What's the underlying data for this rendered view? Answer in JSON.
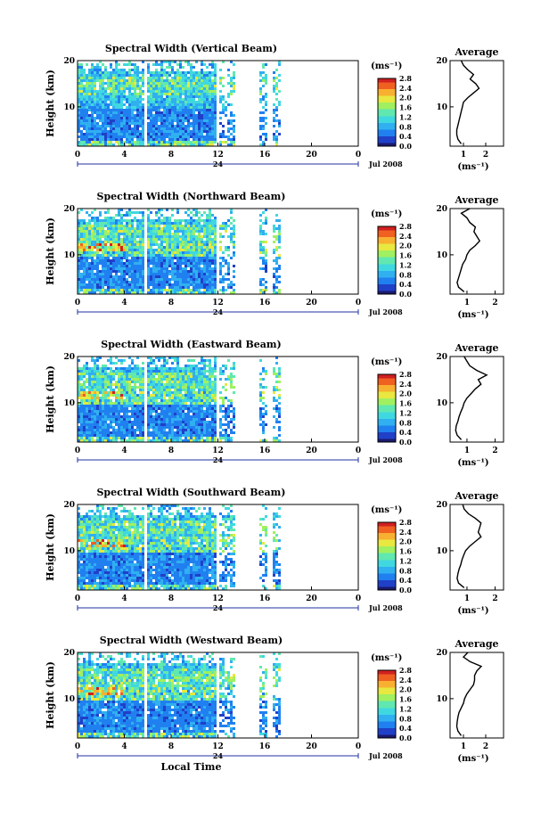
{
  "time_axis_label": "Local Time",
  "date_label": "Jul 2008",
  "day_label": "24",
  "average_title": "Average",
  "unit_label": "(ms⁻¹)",
  "height_axis_label": "Height (km)",
  "colors": {
    "colormap": [
      "#1a1a6e",
      "#2040c8",
      "#2080f0",
      "#30b0f0",
      "#40d8e0",
      "#60e8b0",
      "#a0f060",
      "#e8e840",
      "#f8b030",
      "#f06020",
      "#d02020"
    ]
  },
  "chart_data": [
    {
      "type": "heatmap",
      "title": "Spectral Width (Vertical Beam)",
      "xlabel": "",
      "ylabel": "Height (km)",
      "xlim": [
        0,
        24
      ],
      "ylim": [
        1.5,
        20
      ],
      "x_ticks": [
        "0",
        "4",
        "8",
        "12",
        "16",
        "20",
        "0"
      ],
      "y_ticks": [
        "10",
        "20"
      ],
      "colorbar": {
        "label": "(ms⁻¹)",
        "range": [
          0,
          2.8
        ],
        "ticks": [
          "0.0",
          "0.4",
          "0.8",
          "1.2",
          "1.6",
          "2.0",
          "2.4",
          "2.8"
        ]
      },
      "data_gaps_hours": [
        [
          5.5,
          5.8
        ],
        [
          11.8,
          12.1
        ],
        [
          13.3,
          15.5
        ],
        [
          16.1,
          16.5
        ],
        [
          17.3,
          24
        ]
      ],
      "average_profile": {
        "xlim": [
          0.4,
          2.8
        ],
        "x_ticks": [
          "1",
          "2"
        ],
        "xlabel": "(ms⁻¹)",
        "height_km": [
          2,
          3,
          4,
          5,
          6,
          7,
          8,
          9,
          10,
          11,
          12,
          13,
          14,
          15,
          16,
          17,
          18,
          19,
          20
        ],
        "width_ms": [
          0.9,
          0.75,
          0.7,
          0.7,
          0.75,
          0.8,
          0.85,
          0.9,
          0.95,
          1.0,
          1.2,
          1.45,
          1.7,
          1.55,
          1.3,
          1.45,
          1.2,
          1.0,
          0.9
        ]
      }
    },
    {
      "type": "heatmap",
      "title": "Spectral Width (Northward Beam)",
      "xlabel": "",
      "ylabel": "Height (km)",
      "xlim": [
        0,
        24
      ],
      "ylim": [
        1.5,
        20
      ],
      "x_ticks": [
        "0",
        "4",
        "8",
        "12",
        "16",
        "20",
        "0"
      ],
      "y_ticks": [
        "10",
        "20"
      ],
      "colorbar": {
        "label": "(ms⁻¹)",
        "range": [
          0,
          2.8
        ],
        "ticks": [
          "0.0",
          "0.4",
          "0.8",
          "1.2",
          "1.6",
          "2.0",
          "2.4",
          "2.8"
        ]
      },
      "data_gaps_hours": [
        [
          5.5,
          5.8
        ],
        [
          11.8,
          12.1
        ],
        [
          13.3,
          15.5
        ],
        [
          16.1,
          16.5
        ],
        [
          17.3,
          24
        ]
      ],
      "average_profile": {
        "xlim": [
          0.4,
          2.3
        ],
        "x_ticks": [
          "1",
          "2"
        ],
        "xlabel": "(ms⁻¹)",
        "height_km": [
          2,
          3,
          4,
          5,
          6,
          7,
          8,
          9,
          10,
          11,
          12,
          13,
          14,
          15,
          16,
          17,
          18,
          19,
          20
        ],
        "width_ms": [
          0.9,
          0.7,
          0.65,
          0.7,
          0.75,
          0.8,
          0.85,
          0.95,
          1.0,
          1.1,
          1.3,
          1.45,
          1.35,
          1.25,
          1.3,
          1.1,
          1.0,
          0.8,
          1.1
        ]
      }
    },
    {
      "type": "heatmap",
      "title": "Spectral Width (Eastward Beam)",
      "xlabel": "",
      "ylabel": "Height (km)",
      "xlim": [
        0,
        24
      ],
      "ylim": [
        1.5,
        20
      ],
      "x_ticks": [
        "0",
        "4",
        "8",
        "12",
        "16",
        "20",
        "0"
      ],
      "y_ticks": [
        "10",
        "20"
      ],
      "colorbar": {
        "label": "(ms⁻¹)",
        "range": [
          0,
          2.8
        ],
        "ticks": [
          "0.0",
          "0.4",
          "0.8",
          "1.2",
          "1.6",
          "2.0",
          "2.4",
          "2.8"
        ]
      },
      "data_gaps_hours": [
        [
          5.5,
          5.8
        ],
        [
          11.8,
          12.1
        ],
        [
          13.3,
          15.5
        ],
        [
          16.1,
          16.5
        ],
        [
          17.3,
          24
        ]
      ],
      "average_profile": {
        "xlim": [
          0.4,
          2.3
        ],
        "x_ticks": [
          "1",
          "2"
        ],
        "xlabel": "(ms⁻¹)",
        "height_km": [
          2,
          3,
          4,
          5,
          6,
          7,
          8,
          9,
          10,
          11,
          12,
          13,
          14,
          15,
          16,
          17,
          18,
          19,
          20
        ],
        "width_ms": [
          0.8,
          0.65,
          0.6,
          0.62,
          0.68,
          0.72,
          0.78,
          0.85,
          0.9,
          1.0,
          1.15,
          1.3,
          1.5,
          1.4,
          1.7,
          1.35,
          1.1,
          1.0,
          0.9
        ]
      }
    },
    {
      "type": "heatmap",
      "title": "Spectral Width (Southward Beam)",
      "xlabel": "",
      "ylabel": "Height (km)",
      "xlim": [
        0,
        24
      ],
      "ylim": [
        1.5,
        20
      ],
      "x_ticks": [
        "0",
        "4",
        "8",
        "12",
        "16",
        "20",
        "0"
      ],
      "y_ticks": [
        "10",
        "20"
      ],
      "colorbar": {
        "label": "(ms⁻¹)",
        "range": [
          0,
          2.8
        ],
        "ticks": [
          "0.0",
          "0.4",
          "0.8",
          "1.2",
          "1.6",
          "2.0",
          "2.4",
          "2.8"
        ]
      },
      "data_gaps_hours": [
        [
          5.5,
          5.8
        ],
        [
          11.8,
          12.1
        ],
        [
          13.3,
          15.5
        ],
        [
          16.1,
          16.5
        ],
        [
          17.3,
          24
        ]
      ],
      "average_profile": {
        "xlim": [
          0.4,
          2.3
        ],
        "x_ticks": [
          "1",
          "2"
        ],
        "xlabel": "(ms⁻¹)",
        "height_km": [
          2,
          3,
          4,
          5,
          6,
          7,
          8,
          9,
          10,
          11,
          12,
          13,
          14,
          15,
          16,
          17,
          18,
          19,
          20
        ],
        "width_ms": [
          0.9,
          0.7,
          0.65,
          0.68,
          0.72,
          0.78,
          0.82,
          0.88,
          0.95,
          1.1,
          1.3,
          1.5,
          1.4,
          1.45,
          1.5,
          1.3,
          1.05,
          0.9,
          0.85
        ]
      }
    },
    {
      "type": "heatmap",
      "title": "Spectral Width (Westward Beam)",
      "xlabel": "Local Time",
      "ylabel": "Height (km)",
      "xlim": [
        0,
        24
      ],
      "ylim": [
        1.5,
        20
      ],
      "x_ticks": [
        "0",
        "4",
        "8",
        "12",
        "16",
        "20",
        "0"
      ],
      "y_ticks": [
        "10",
        "20"
      ],
      "colorbar": {
        "label": "(ms⁻¹)",
        "range": [
          0,
          2.8
        ],
        "ticks": [
          "0.0",
          "0.4",
          "0.8",
          "1.2",
          "1.6",
          "2.0",
          "2.4",
          "2.8"
        ]
      },
      "data_gaps_hours": [
        [
          5.5,
          5.8
        ],
        [
          11.8,
          12.1
        ],
        [
          13.3,
          15.5
        ],
        [
          16.1,
          16.5
        ],
        [
          17.3,
          24
        ]
      ],
      "average_profile": {
        "xlim": [
          0.4,
          2.8
        ],
        "x_ticks": [
          "1",
          "2"
        ],
        "xlabel": "(ms⁻¹)",
        "height_km": [
          2,
          3,
          4,
          5,
          6,
          7,
          8,
          9,
          10,
          11,
          12,
          13,
          14,
          15,
          16,
          17,
          18,
          19,
          20
        ],
        "width_ms": [
          0.9,
          0.75,
          0.7,
          0.72,
          0.75,
          0.8,
          0.9,
          1.0,
          1.05,
          1.15,
          1.3,
          1.45,
          1.5,
          1.5,
          1.6,
          1.8,
          1.3,
          1.0,
          1.2
        ]
      }
    }
  ]
}
